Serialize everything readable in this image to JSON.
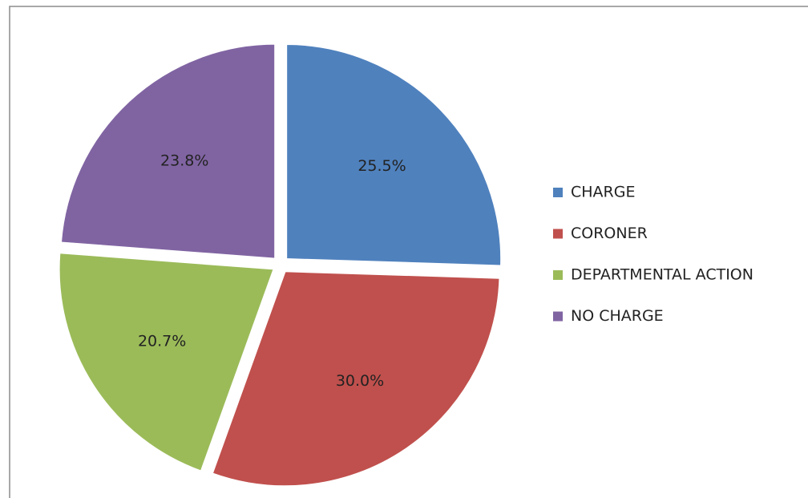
{
  "chart_data": {
    "type": "pie",
    "categories": [
      "CHARGE",
      "CORONER",
      "DEPARTMENTAL ACTION",
      "NO CHARGE"
    ],
    "values": [
      25.5,
      30.0,
      20.7,
      23.8
    ],
    "value_labels": [
      "25.5%",
      "30.0%",
      "20.7%",
      "23.8%"
    ],
    "colors": [
      "#4f81bd",
      "#c0504d",
      "#9bbb59",
      "#8064a2"
    ],
    "legend": "right"
  }
}
